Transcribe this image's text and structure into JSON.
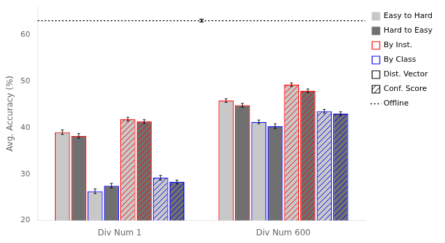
{
  "chart_data": {
    "type": "bar",
    "ylabel": "Avg. Accuracy (%)",
    "categories": [
      "Div Num 1",
      "Div Num 600"
    ],
    "ylim": [
      20,
      66
    ],
    "yticks": [
      20,
      30,
      40,
      50,
      60
    ],
    "grid": false,
    "legend": "upper right",
    "series": [
      {
        "color": "#c8c8c8",
        "edge_color": "#ff0000",
        "values": [
          39.0,
          45.8
        ],
        "errors": [
          0.5,
          0.4
        ]
      },
      {
        "color": "#707070",
        "edge_color": "#ff0000",
        "values": [
          38.2,
          44.8
        ],
        "errors": [
          0.5,
          0.4
        ]
      },
      {
        "color": "#c8c8c8",
        "edge_color": "#0000ff",
        "values": [
          26.3,
          41.2
        ],
        "errors": [
          0.5,
          0.4
        ]
      },
      {
        "color": "#707070",
        "edge_color": "#0000ff",
        "values": [
          27.5,
          40.3
        ],
        "errors": [
          0.5,
          0.5
        ]
      },
      {
        "color": "#c8c8c8",
        "edge_color": "#ff0000",
        "hatch": "///",
        "values": [
          41.8,
          49.2
        ],
        "errors": [
          0.4,
          0.4
        ]
      },
      {
        "color": "#707070",
        "edge_color": "#ff0000",
        "hatch": "///",
        "values": [
          41.3,
          47.9
        ],
        "errors": [
          0.4,
          0.4
        ]
      },
      {
        "color": "#c8c8c8",
        "edge_color": "#0000ff",
        "hatch": "///",
        "values": [
          29.2,
          43.5
        ],
        "errors": [
          0.5,
          0.4
        ]
      },
      {
        "color": "#707070",
        "edge_color": "#0000ff",
        "hatch": "///",
        "values": [
          28.3,
          43.0
        ],
        "errors": [
          0.4,
          0.4
        ]
      }
    ],
    "legend_entries": [
      {
        "name": "Easy to Hard",
        "color": "#c8c8c8"
      },
      {
        "name": "Hard to Easy",
        "color": "#707070"
      },
      {
        "name": "By Inst.",
        "color": "#ffffff",
        "edge_color": "#ff0000"
      },
      {
        "name": "By Class",
        "color": "#ffffff",
        "edge_color": "#0000ff"
      },
      {
        "name": "Dist. Vector",
        "color": "#ffffff",
        "edge_color": "#000000"
      },
      {
        "name": "Conf. Score",
        "color": "#ffffff",
        "edge_color": "#000000",
        "hatch": "///"
      }
    ],
    "reference_line": {
      "name": "Offline",
      "value": 63.0,
      "error": 0.3,
      "line_style": "dotted"
    }
  }
}
